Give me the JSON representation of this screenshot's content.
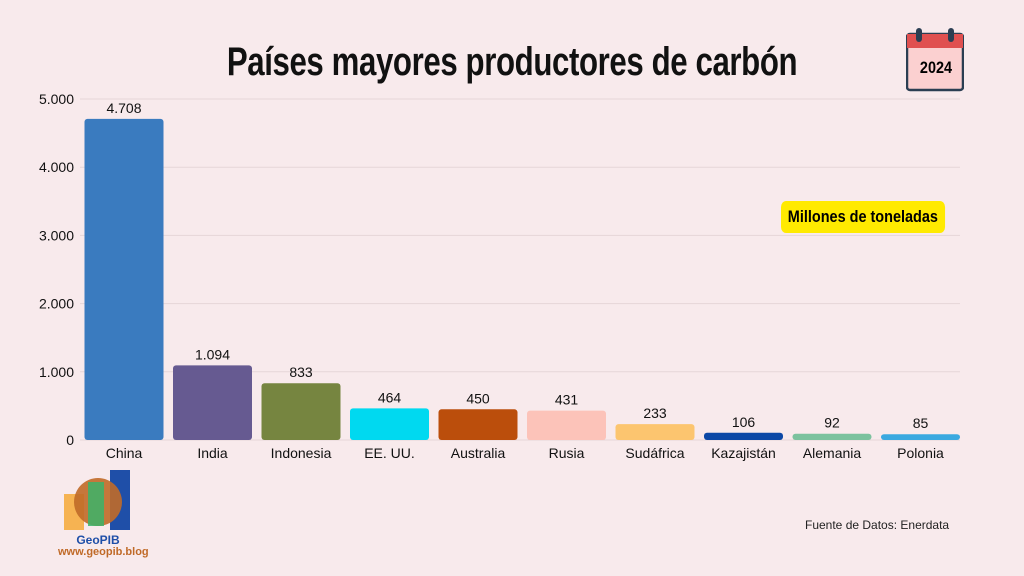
{
  "chart_data": {
    "type": "bar",
    "title": "Países mayores productores de carbón",
    "categories": [
      "China",
      "India",
      "Indonesia",
      "EE. UU.",
      "Australia",
      "Rusia",
      "Sudáfrica",
      "Kazajistán",
      "Alemania",
      "Polonia"
    ],
    "values": [
      4708,
      1094,
      833,
      464,
      450,
      431,
      233,
      106,
      92,
      85
    ],
    "value_labels": [
      "4.708",
      "1.094",
      "833",
      "464",
      "450",
      "431",
      "233",
      "106",
      "92",
      "85"
    ],
    "colors": [
      "#3a7bbf",
      "#665a91",
      "#768540",
      "#00d9f0",
      "#bb4e0c",
      "#fcc3b9",
      "#fcc56f",
      "#0c48a6",
      "#7cc29e",
      "#3ba9e0"
    ],
    "ylim": [
      0,
      5000
    ],
    "yticks": [
      0,
      1000,
      2000,
      3000,
      4000,
      5000
    ],
    "ytick_labels": [
      "0",
      "1.000",
      "2.000",
      "3.000",
      "4.000",
      "5.000"
    ],
    "grid": true,
    "unit_label": "Millones de toneladas",
    "xlabel": "",
    "ylabel": ""
  },
  "year": "2024",
  "source": "Fuente de Datos: Enerdata",
  "logo": {
    "name": "GeoPIB",
    "url": "www.geopib.blog"
  }
}
